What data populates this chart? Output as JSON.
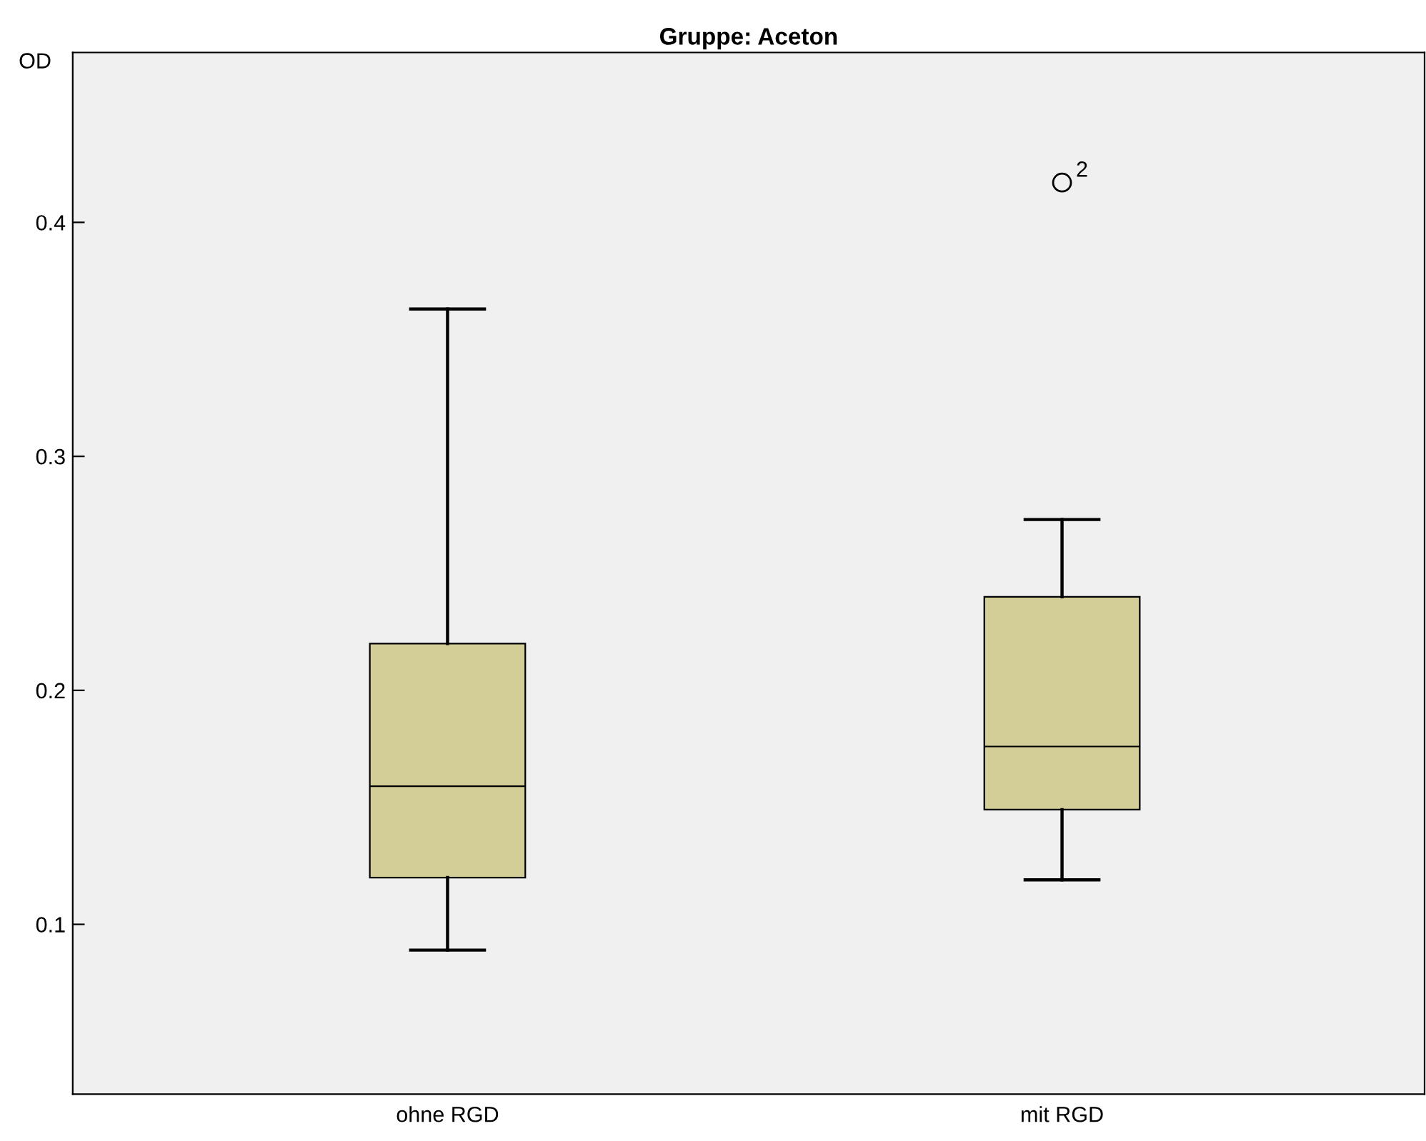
{
  "chart_data": {
    "type": "box",
    "title": "Gruppe: Aceton",
    "ylabel": "OD",
    "categories": [
      "ohne RGD",
      "mit RGD"
    ],
    "boxes": [
      {
        "low": 0.089,
        "q1": 0.12,
        "median": 0.159,
        "q3": 0.22,
        "high": 0.363
      },
      {
        "low": 0.119,
        "q1": 0.149,
        "median": 0.176,
        "q3": 0.24,
        "high": 0.273,
        "outliers": [
          0.417
        ]
      }
    ],
    "color": "#d3ce98",
    "annotations": [
      "2"
    ],
    "ylim": [
      0.0274,
      0.4726
    ],
    "yticks": [
      0.1,
      0.2,
      0.3,
      0.4
    ],
    "grid": false,
    "legend": false
  }
}
